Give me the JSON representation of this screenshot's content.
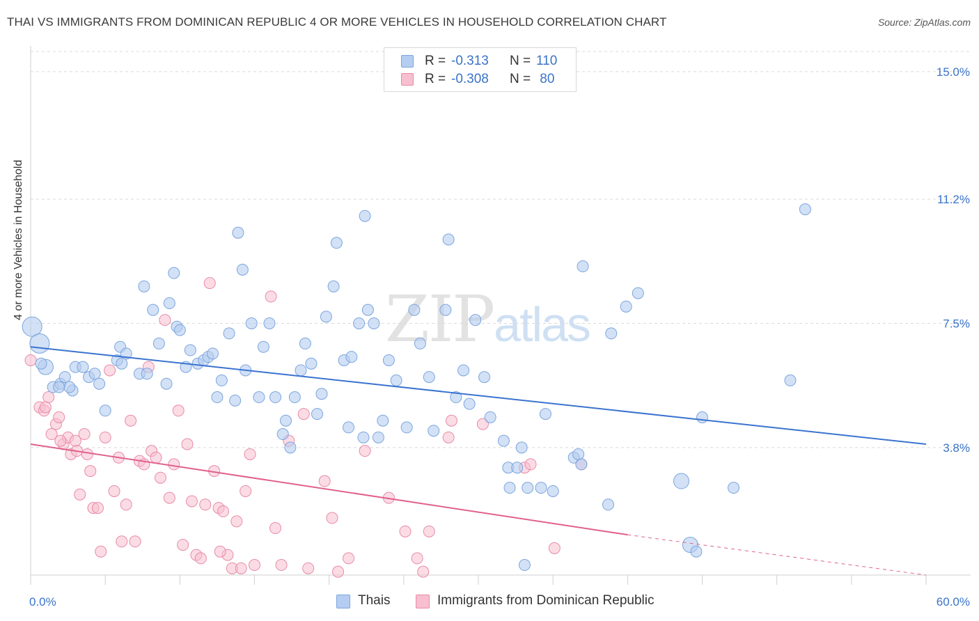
{
  "header": {
    "title": "THAI VS IMMIGRANTS FROM DOMINICAN REPUBLIC 4 OR MORE VEHICLES IN HOUSEHOLD CORRELATION CHART",
    "source": "Source: ZipAtlas.com"
  },
  "watermark": {
    "zip": "ZIP",
    "atlas": "atlas"
  },
  "legend": {
    "rows": [
      {
        "r_label": "R =",
        "r_value": "-0.313",
        "n_label": "N =",
        "n_value": "110"
      },
      {
        "r_label": "R =",
        "r_value": "-0.308",
        "n_label": "N =",
        "n_value": " 80"
      }
    ]
  },
  "bottom_legend": {
    "series1": "Thais",
    "series2": "Immigrants from Dominican Republic"
  },
  "colors": {
    "series1_fill": "#b5cdf0",
    "series1_stroke": "#7aa5de",
    "series1_line": "#3a73d0",
    "series2_fill": "#f7bfd0",
    "series2_stroke": "#e88aa8",
    "series2_line": "#e0608e",
    "tick_label": "#3a73c8",
    "grid": "#d9d9d9"
  },
  "chart_data": {
    "type": "scatter",
    "title": "THAI VS IMMIGRANTS FROM DOMINICAN REPUBLIC 4 OR MORE VEHICLES IN HOUSEHOLD CORRELATION CHART",
    "xlabel": "",
    "ylabel": "4 or more Vehicles in Household",
    "xlim": [
      0,
      60
    ],
    "ylim": [
      0,
      15.6
    ],
    "x_tick_labels": [
      "0.0%",
      "60.0%"
    ],
    "y_ticks": [
      3.8,
      7.5,
      11.2,
      15.0
    ],
    "y_tick_labels": [
      "3.8%",
      "7.5%",
      "11.2%",
      "15.0%"
    ],
    "grid": true,
    "series": [
      {
        "name": "Thais",
        "trend": {
          "x": [
            0,
            60
          ],
          "y": [
            6.8,
            3.9
          ]
        },
        "points": [
          [
            0.1,
            7.4
          ],
          [
            0.6,
            6.9
          ],
          [
            1.0,
            6.2
          ],
          [
            1.5,
            5.6
          ],
          [
            2.0,
            5.7
          ],
          [
            2.3,
            5.9
          ],
          [
            2.8,
            5.5
          ],
          [
            3.0,
            6.2
          ],
          [
            3.5,
            6.2
          ],
          [
            3.9,
            5.9
          ],
          [
            4.3,
            6.0
          ],
          [
            4.6,
            5.7
          ],
          [
            5.0,
            4.9
          ],
          [
            5.8,
            6.4
          ],
          [
            6.0,
            6.8
          ],
          [
            6.4,
            6.6
          ],
          [
            7.3,
            6.0
          ],
          [
            7.6,
            8.6
          ],
          [
            7.8,
            6.0
          ],
          [
            8.2,
            7.9
          ],
          [
            8.6,
            6.9
          ],
          [
            9.1,
            5.7
          ],
          [
            9.3,
            8.1
          ],
          [
            9.8,
            7.4
          ],
          [
            10.0,
            7.3
          ],
          [
            10.4,
            6.2
          ],
          [
            10.7,
            6.7
          ],
          [
            11.2,
            6.3
          ],
          [
            11.6,
            6.4
          ],
          [
            11.9,
            6.5
          ],
          [
            12.2,
            6.6
          ],
          [
            12.5,
            5.3
          ],
          [
            13.3,
            7.2
          ],
          [
            13.7,
            5.2
          ],
          [
            13.9,
            10.2
          ],
          [
            14.2,
            9.1
          ],
          [
            14.4,
            6.1
          ],
          [
            14.8,
            7.5
          ],
          [
            15.3,
            5.3
          ],
          [
            15.6,
            6.8
          ],
          [
            16.0,
            7.5
          ],
          [
            16.4,
            5.3
          ],
          [
            16.9,
            4.2
          ],
          [
            17.1,
            4.6
          ],
          [
            17.4,
            3.8
          ],
          [
            17.7,
            5.3
          ],
          [
            18.1,
            6.1
          ],
          [
            18.4,
            6.9
          ],
          [
            18.8,
            6.3
          ],
          [
            19.2,
            4.8
          ],
          [
            19.5,
            5.4
          ],
          [
            19.8,
            7.7
          ],
          [
            20.3,
            8.6
          ],
          [
            20.5,
            9.9
          ],
          [
            21.0,
            6.4
          ],
          [
            21.3,
            4.4
          ],
          [
            21.5,
            6.5
          ],
          [
            22.0,
            7.5
          ],
          [
            22.3,
            4.1
          ],
          [
            22.4,
            10.7
          ],
          [
            22.6,
            7.9
          ],
          [
            23.0,
            7.5
          ],
          [
            23.3,
            4.1
          ],
          [
            23.6,
            4.6
          ],
          [
            24.0,
            6.4
          ],
          [
            24.5,
            5.8
          ],
          [
            25.2,
            4.4
          ],
          [
            25.7,
            7.9
          ],
          [
            26.1,
            6.9
          ],
          [
            26.7,
            5.9
          ],
          [
            27.0,
            4.3
          ],
          [
            27.8,
            7.9
          ],
          [
            28.0,
            10.0
          ],
          [
            28.5,
            5.3
          ],
          [
            29.0,
            6.1
          ],
          [
            29.4,
            5.1
          ],
          [
            29.8,
            7.6
          ],
          [
            30.4,
            5.9
          ],
          [
            30.8,
            4.7
          ],
          [
            31.7,
            4.0
          ],
          [
            32.0,
            3.2
          ],
          [
            32.1,
            2.6
          ],
          [
            32.6,
            3.2
          ],
          [
            32.9,
            3.8
          ],
          [
            33.1,
            0.3
          ],
          [
            33.3,
            2.6
          ],
          [
            34.2,
            2.6
          ],
          [
            34.5,
            4.8
          ],
          [
            35.0,
            2.5
          ],
          [
            36.4,
            3.5
          ],
          [
            36.7,
            3.6
          ],
          [
            36.9,
            3.3
          ],
          [
            37.0,
            9.2
          ],
          [
            38.7,
            2.1
          ],
          [
            38.9,
            7.2
          ],
          [
            39.9,
            8.0
          ],
          [
            40.7,
            8.4
          ],
          [
            43.6,
            2.8
          ],
          [
            44.2,
            0.9
          ],
          [
            44.6,
            0.7
          ],
          [
            45.0,
            4.7
          ],
          [
            50.9,
            5.8
          ],
          [
            51.9,
            10.9
          ],
          [
            47.1,
            2.6
          ],
          [
            6.1,
            6.3
          ],
          [
            2.6,
            5.6
          ],
          [
            1.9,
            5.6
          ],
          [
            0.7,
            6.3
          ],
          [
            9.6,
            9.0
          ],
          [
            12.8,
            5.8
          ]
        ]
      },
      {
        "name": "Immigrants from Dominican Republic",
        "trend": {
          "x": [
            0,
            40
          ],
          "y": [
            3.9,
            1.2
          ]
        },
        "trend_extension": {
          "x": [
            40,
            60
          ],
          "y": [
            1.2,
            0.0
          ]
        },
        "points": [
          [
            0.0,
            6.4
          ],
          [
            0.6,
            5.0
          ],
          [
            0.9,
            4.9
          ],
          [
            1.2,
            5.3
          ],
          [
            1.4,
            4.2
          ],
          [
            1.7,
            4.5
          ],
          [
            1.9,
            4.7
          ],
          [
            2.2,
            3.9
          ],
          [
            2.5,
            4.1
          ],
          [
            2.7,
            3.6
          ],
          [
            3.0,
            4.0
          ],
          [
            3.3,
            2.4
          ],
          [
            3.6,
            4.2
          ],
          [
            3.8,
            3.6
          ],
          [
            4.0,
            3.1
          ],
          [
            4.2,
            2.0
          ],
          [
            4.5,
            2.0
          ],
          [
            4.7,
            0.7
          ],
          [
            5.0,
            4.1
          ],
          [
            5.3,
            6.1
          ],
          [
            5.6,
            2.5
          ],
          [
            5.9,
            3.5
          ],
          [
            6.1,
            1.0
          ],
          [
            6.4,
            2.1
          ],
          [
            6.7,
            4.6
          ],
          [
            7.0,
            1.0
          ],
          [
            7.3,
            3.4
          ],
          [
            7.6,
            3.3
          ],
          [
            7.9,
            6.2
          ],
          [
            8.1,
            3.7
          ],
          [
            8.4,
            3.5
          ],
          [
            8.7,
            2.9
          ],
          [
            9.0,
            7.6
          ],
          [
            9.3,
            2.3
          ],
          [
            9.6,
            3.3
          ],
          [
            9.9,
            4.9
          ],
          [
            10.2,
            0.9
          ],
          [
            10.5,
            3.9
          ],
          [
            10.8,
            2.2
          ],
          [
            11.1,
            0.6
          ],
          [
            11.4,
            0.5
          ],
          [
            11.7,
            2.1
          ],
          [
            12.0,
            8.7
          ],
          [
            12.3,
            3.1
          ],
          [
            12.6,
            2.0
          ],
          [
            12.9,
            1.9
          ],
          [
            13.2,
            0.6
          ],
          [
            13.5,
            0.2
          ],
          [
            13.8,
            1.6
          ],
          [
            14.1,
            0.2
          ],
          [
            14.4,
            2.5
          ],
          [
            14.7,
            3.6
          ],
          [
            15.0,
            0.3
          ],
          [
            16.1,
            8.3
          ],
          [
            16.4,
            1.4
          ],
          [
            16.8,
            0.3
          ],
          [
            17.3,
            4.0
          ],
          [
            18.3,
            4.8
          ],
          [
            18.6,
            0.2
          ],
          [
            19.7,
            2.8
          ],
          [
            20.2,
            1.7
          ],
          [
            20.6,
            0.1
          ],
          [
            21.3,
            0.5
          ],
          [
            22.4,
            3.7
          ],
          [
            24.0,
            2.3
          ],
          [
            25.1,
            1.3
          ],
          [
            25.9,
            0.5
          ],
          [
            26.3,
            0.1
          ],
          [
            26.7,
            1.3
          ],
          [
            28.0,
            4.1
          ],
          [
            28.2,
            4.6
          ],
          [
            30.3,
            4.5
          ],
          [
            33.1,
            3.2
          ],
          [
            33.5,
            3.3
          ],
          [
            35.1,
            0.8
          ],
          [
            36.9,
            3.3
          ],
          [
            12.7,
            0.7
          ],
          [
            3.1,
            3.7
          ],
          [
            2.0,
            4.0
          ],
          [
            1.0,
            5.0
          ]
        ]
      }
    ]
  }
}
